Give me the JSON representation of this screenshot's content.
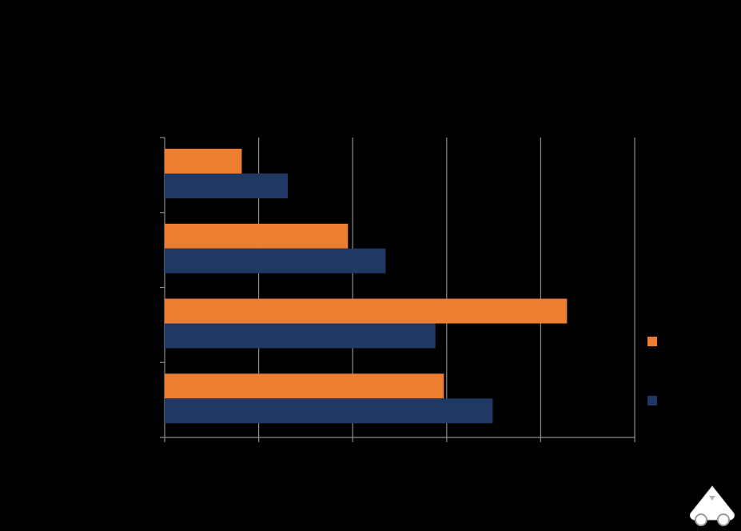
{
  "chart_data": {
    "type": "bar",
    "orientation": "horizontal",
    "grid": true,
    "xlim": [
      0,
      5
    ],
    "n_categories": 4,
    "series": [
      {
        "color": "#ED7D31",
        "values": [
          0.82,
          1.95,
          4.28,
          2.97
        ]
      },
      {
        "color": "#203864",
        "values": [
          1.31,
          2.35,
          2.88,
          3.49
        ]
      }
    ],
    "legend_position": "right"
  },
  "logo": {
    "icon": "car-logo-icon"
  }
}
